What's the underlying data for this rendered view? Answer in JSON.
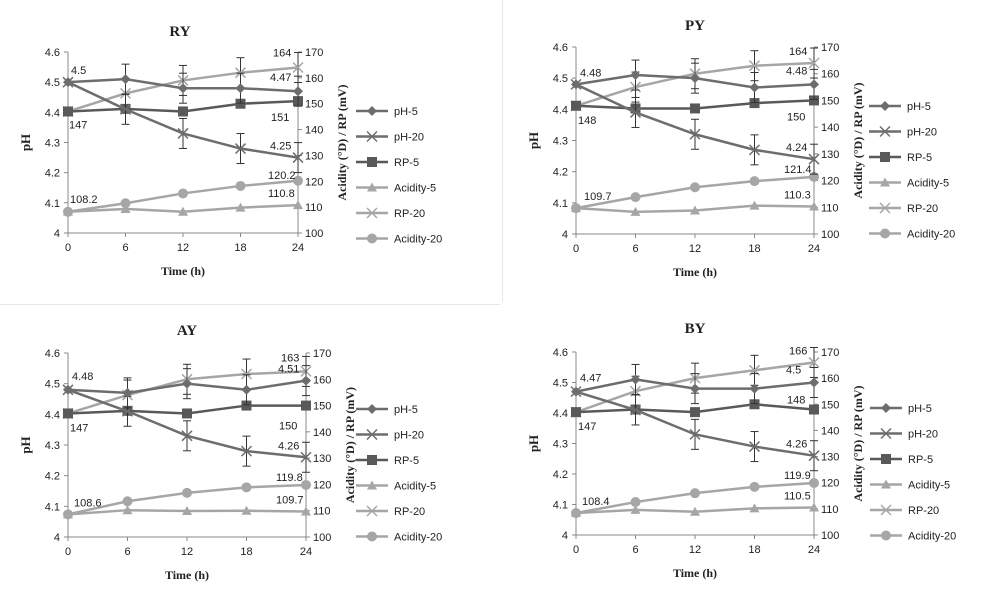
{
  "x_label": "Time (h)",
  "y_left_label": "pH",
  "y_right_label": "Acidity (°D) / RP (mV)",
  "legend": [
    {
      "name": "pH-5",
      "marker": "diamond",
      "color": "#6d6d6d"
    },
    {
      "name": "pH-20",
      "marker": "x",
      "color": "#6d6d6d"
    },
    {
      "name": "RP-5",
      "marker": "square",
      "color": "#595959"
    },
    {
      "name": "Acidity-5",
      "marker": "triangle",
      "color": "#a6a6a6"
    },
    {
      "name": "RP-20",
      "marker": "x",
      "color": "#a6a6a6"
    },
    {
      "name": "Acidity-20",
      "marker": "circle",
      "color": "#a6a6a6"
    }
  ],
  "chart_data": [
    {
      "type": "line",
      "title": "RY",
      "x": [
        0,
        6,
        12,
        18,
        24
      ],
      "xlabel": "Time (h)",
      "ylabel": "pH",
      "ylabel_right": "Acidity (°D) / RP (mV)",
      "ylim": [
        4,
        4.6
      ],
      "ylim_right": [
        100,
        170
      ],
      "x_ticks": [
        0,
        6,
        12,
        18,
        24
      ],
      "y_ticks": [
        "4",
        "4.1",
        "4.2",
        "4.3",
        "4.4",
        "4.5",
        "4.6"
      ],
      "y_ticks_right": [
        "100",
        "110",
        "120",
        "130",
        "140",
        "150",
        "160",
        "170"
      ],
      "legend_position": "right",
      "series": [
        {
          "name": "pH-5",
          "axis": "left",
          "values": [
            4.5,
            4.51,
            4.48,
            4.48,
            4.47
          ]
        },
        {
          "name": "pH-20",
          "axis": "left",
          "values": [
            4.5,
            4.41,
            4.33,
            4.28,
            4.25
          ]
        },
        {
          "name": "RP-5",
          "axis": "right",
          "values": [
            147,
            148,
            147,
            150,
            151
          ]
        },
        {
          "name": "Acidity-5",
          "axis": "right",
          "values": [
            108.2,
            109.3,
            108.2,
            109.8,
            110.8
          ]
        },
        {
          "name": "RP-20",
          "axis": "right",
          "values": [
            147,
            154,
            159,
            162,
            164
          ]
        },
        {
          "name": "Acidity-20",
          "axis": "right",
          "values": [
            108.2,
            111.5,
            115.3,
            118.2,
            120.2
          ]
        }
      ],
      "labels": [
        "4.5",
        "4.47",
        "4.25",
        "164",
        "147",
        "151",
        "108.2",
        "120.2",
        "110.8"
      ]
    },
    {
      "type": "line",
      "title": "PY",
      "x": [
        0,
        6,
        12,
        18,
        24
      ],
      "xlabel": "Time (h)",
      "ylabel": "pH",
      "ylabel_right": "Acidity (°D) / RP (mV)",
      "ylim": [
        4,
        4.6
      ],
      "ylim_right": [
        100,
        170
      ],
      "x_ticks": [
        0,
        6,
        12,
        18,
        24
      ],
      "y_ticks": [
        "4",
        "4.1",
        "4.2",
        "4.3",
        "4.4",
        "4.5",
        "4.6"
      ],
      "y_ticks_right": [
        "100",
        "110",
        "120",
        "130",
        "140",
        "150",
        "160",
        "170"
      ],
      "legend_position": "right",
      "series": [
        {
          "name": "pH-5",
          "axis": "left",
          "values": [
            4.48,
            4.51,
            4.5,
            4.47,
            4.48
          ]
        },
        {
          "name": "pH-20",
          "axis": "left",
          "values": [
            4.48,
            4.39,
            4.32,
            4.27,
            4.24
          ]
        },
        {
          "name": "RP-5",
          "axis": "right",
          "values": [
            148,
            147,
            147,
            149,
            150
          ]
        },
        {
          "name": "Acidity-5",
          "axis": "right",
          "values": [
            109.7,
            108.3,
            108.8,
            110.6,
            110.3
          ]
        },
        {
          "name": "RP-20",
          "axis": "right",
          "values": [
            148,
            155,
            160,
            163,
            164
          ]
        },
        {
          "name": "Acidity-20",
          "axis": "right",
          "values": [
            109.7,
            113.8,
            117.5,
            119.8,
            121.4
          ]
        }
      ],
      "labels": [
        "4.48",
        "4.48",
        "4.24",
        "164",
        "148",
        "150",
        "109.7",
        "121.4",
        "110.3"
      ]
    },
    {
      "type": "line",
      "title": "AY",
      "x": [
        0,
        6,
        12,
        18,
        24
      ],
      "xlabel": "Time (h)",
      "ylabel": "pH",
      "ylabel_right": "Acidity (°D) / RP (mV)",
      "ylim": [
        4,
        4.6
      ],
      "ylim_right": [
        100,
        170
      ],
      "x_ticks": [
        0,
        6,
        12,
        18,
        24
      ],
      "y_ticks": [
        "4",
        "4.1",
        "4.2",
        "4.3",
        "4.4",
        "4.5",
        "4.6"
      ],
      "y_ticks_right": [
        "100",
        "110",
        "120",
        "130",
        "140",
        "150",
        "160",
        "170"
      ],
      "legend_position": "right",
      "series": [
        {
          "name": "pH-5",
          "axis": "left",
          "values": [
            4.48,
            4.47,
            4.5,
            4.48,
            4.51
          ]
        },
        {
          "name": "pH-20",
          "axis": "left",
          "values": [
            4.48,
            4.41,
            4.33,
            4.28,
            4.26
          ]
        },
        {
          "name": "RP-5",
          "axis": "right",
          "values": [
            147,
            148,
            147,
            150,
            150
          ]
        },
        {
          "name": "Acidity-5",
          "axis": "right",
          "values": [
            108.6,
            110.2,
            109.9,
            110,
            109.7
          ]
        },
        {
          "name": "RP-20",
          "axis": "right",
          "values": [
            147,
            154,
            160,
            162,
            163
          ]
        },
        {
          "name": "Acidity-20",
          "axis": "right",
          "values": [
            108.6,
            113.6,
            116.8,
            118.9,
            119.8
          ]
        }
      ],
      "labels": [
        "4.48",
        "4.51",
        "4.26",
        "163",
        "147",
        "150",
        "108.6",
        "119.8",
        "109.7"
      ]
    },
    {
      "type": "line",
      "title": "BY",
      "x": [
        0,
        6,
        12,
        18,
        24
      ],
      "xlabel": "Time (h)",
      "ylabel": "pH",
      "ylabel_right": "Acidity (°D) / RP (mV)",
      "ylim": [
        4,
        4.6
      ],
      "ylim_right": [
        100,
        170
      ],
      "x_ticks": [
        0,
        6,
        12,
        18,
        24
      ],
      "y_ticks": [
        "4",
        "4.1",
        "4.2",
        "4.3",
        "4.4",
        "4.5",
        "4.6"
      ],
      "y_ticks_right": [
        "100",
        "110",
        "120",
        "130",
        "140",
        "150",
        "160",
        "170"
      ],
      "legend_position": "right",
      "series": [
        {
          "name": "pH-5",
          "axis": "left",
          "values": [
            4.47,
            4.51,
            4.48,
            4.48,
            4.5
          ]
        },
        {
          "name": "pH-20",
          "axis": "left",
          "values": [
            4.47,
            4.41,
            4.33,
            4.29,
            4.26
          ]
        },
        {
          "name": "RP-5",
          "axis": "right",
          "values": [
            147,
            148,
            147,
            150,
            148
          ]
        },
        {
          "name": "Acidity-5",
          "axis": "right",
          "values": [
            108.4,
            109.6,
            108.9,
            110.2,
            110.5
          ]
        },
        {
          "name": "RP-20",
          "axis": "right",
          "values": [
            147,
            155,
            160,
            163,
            166
          ]
        },
        {
          "name": "Acidity-20",
          "axis": "right",
          "values": [
            108.4,
            112.6,
            116,
            118.4,
            119.9
          ]
        }
      ],
      "labels": [
        "4.47",
        "4.5",
        "4.26",
        "166",
        "147",
        "148",
        "108.4",
        "119.9",
        "110.5"
      ]
    }
  ]
}
